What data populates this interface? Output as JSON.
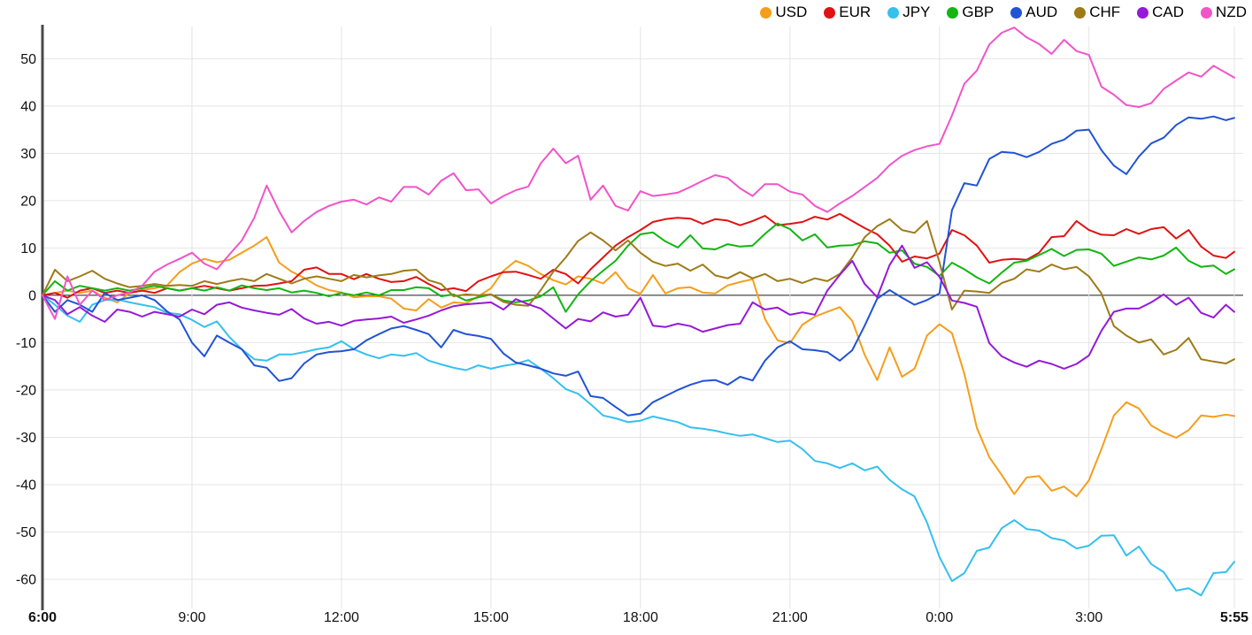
{
  "page": {
    "background": "#ffffff"
  },
  "legend": {
    "items": [
      {
        "label": "USD",
        "color": "#f59e1b"
      },
      {
        "label": "EUR",
        "color": "#e01212"
      },
      {
        "label": "JPY",
        "color": "#35c0ee"
      },
      {
        "label": "GBP",
        "color": "#12b512"
      },
      {
        "label": "AUD",
        "color": "#2153d4"
      },
      {
        "label": "CHF",
        "color": "#9e7b17"
      },
      {
        "label": "CAD",
        "color": "#9519d9"
      },
      {
        "label": "NZD",
        "color": "#f154c9"
      }
    ]
  },
  "chart_data": {
    "type": "line",
    "title": "",
    "xlabel": "",
    "ylabel": "",
    "x_unit": "minutes since 6:00",
    "x_range": [
      0,
      1435
    ],
    "ylim": [
      -65.8,
      56.8
    ],
    "grid": true,
    "zero_line_color": "#1a1a1a",
    "grid_color": "#e4e4e4",
    "axis_color": "#4a4a4a",
    "tick_label_color": "#111111",
    "legend_position": "top-right",
    "y_ticks": [
      50,
      40,
      30,
      20,
      10,
      0,
      -10,
      -20,
      -30,
      -40,
      -50,
      -60
    ],
    "x_ticks": [
      {
        "t": 0,
        "label": "6:00",
        "bold": true
      },
      {
        "t": 180,
        "label": "9:00",
        "bold": false
      },
      {
        "t": 360,
        "label": "12:00",
        "bold": false
      },
      {
        "t": 540,
        "label": "15:00",
        "bold": false
      },
      {
        "t": 720,
        "label": "18:00",
        "bold": false
      },
      {
        "t": 900,
        "label": "21:00",
        "bold": false
      },
      {
        "t": 1080,
        "label": "0:00",
        "bold": false
      },
      {
        "t": 1260,
        "label": "3:00",
        "bold": false
      },
      {
        "t": 1435,
        "label": "5:55",
        "bold": true
      }
    ],
    "x": [
      0,
      15,
      30,
      45,
      60,
      75,
      90,
      105,
      120,
      135,
      150,
      165,
      180,
      195,
      210,
      225,
      240,
      255,
      270,
      285,
      300,
      315,
      330,
      345,
      360,
      375,
      390,
      405,
      420,
      435,
      450,
      465,
      480,
      495,
      510,
      525,
      540,
      555,
      570,
      585,
      600,
      615,
      630,
      645,
      660,
      675,
      690,
      705,
      720,
      735,
      750,
      765,
      780,
      795,
      810,
      825,
      840,
      855,
      870,
      885,
      900,
      915,
      930,
      945,
      960,
      975,
      990,
      1005,
      1020,
      1035,
      1050,
      1065,
      1080,
      1095,
      1110,
      1125,
      1140,
      1155,
      1170,
      1185,
      1200,
      1215,
      1230,
      1245,
      1260,
      1275,
      1290,
      1305,
      1320,
      1335,
      1350,
      1365,
      1380,
      1395,
      1410,
      1425,
      1435
    ],
    "series": [
      {
        "name": "USD",
        "color": "#f59e1b",
        "values": [
          0,
          0.5,
          1,
          0.5,
          1,
          -0.5,
          -1.5,
          0.5,
          1.1,
          1.5,
          2.1,
          4.9,
          6.7,
          7.7,
          7,
          7.5,
          9,
          10.5,
          12.3,
          6.9,
          5,
          3.7,
          2.1,
          1.1,
          0.6,
          -0.4,
          -0.2,
          -0.2,
          -0.7,
          -2.8,
          -3.2,
          -0.8,
          -2.6,
          -1.5,
          -1.7,
          -0.2,
          1.5,
          5.2,
          7.3,
          6.2,
          4.5,
          3.2,
          2.3,
          4,
          3.5,
          2.5,
          4.9,
          1.5,
          0.3,
          4.3,
          0.4,
          1.5,
          1.7,
          0.6,
          0.4,
          2.1,
          2.8,
          3.4,
          -5,
          -9.5,
          -10.1,
          -6.2,
          -4.5,
          -3.5,
          -2.5,
          -5.4,
          -12.6,
          -17.9,
          -11,
          -17.2,
          -15.5,
          -8.5,
          -6.1,
          -8,
          -16.6,
          -28,
          -34.2,
          -38,
          -42,
          -38.5,
          -38.2,
          -41.3,
          -40.4,
          -42.5,
          -39.1,
          -32.5,
          -25.4,
          -22.6,
          -23.9,
          -27.5,
          -29,
          -30.1,
          -28.5,
          -25.4,
          -25.7,
          -25.2,
          -25.5
        ]
      },
      {
        "name": "EUR",
        "color": "#e01212",
        "values": [
          0,
          0.5,
          -0.5,
          1,
          1.5,
          0.5,
          1,
          0.5,
          1,
          0.5,
          1.5,
          1,
          1.5,
          2,
          1.5,
          1,
          1.5,
          2,
          2.1,
          2.5,
          3,
          5.4,
          5.9,
          4.5,
          4.5,
          3.4,
          4.5,
          3.5,
          2.8,
          3,
          3.9,
          2.4,
          1.1,
          1.5,
          0.9,
          3,
          4,
          4.9,
          5,
          4.3,
          3.5,
          5.4,
          4.5,
          2.5,
          5.5,
          8,
          10.5,
          12.3,
          13.8,
          15.5,
          16.1,
          16.4,
          16.2,
          15.1,
          16.1,
          15.8,
          14.8,
          15.7,
          16.8,
          14.8,
          15.1,
          15.5,
          16.6,
          16,
          17.2,
          15.7,
          14.2,
          12.9,
          10.5,
          7.1,
          8.2,
          7.8,
          8.8,
          13.8,
          12.7,
          10.5,
          6.9,
          7.5,
          7.7,
          7.5,
          9,
          12.3,
          12.5,
          15.7,
          13.8,
          12.8,
          12.7,
          14,
          13,
          14,
          14.4,
          12,
          13.8,
          10.3,
          8.4,
          7.9,
          9.2
        ]
      },
      {
        "name": "JPY",
        "color": "#35c0ee",
        "values": [
          0,
          -2,
          -4.3,
          -5.6,
          -2,
          -1,
          -0.9,
          -1.5,
          -2,
          -2.5,
          -3.7,
          -4,
          -5.2,
          -6.7,
          -5.5,
          -8.8,
          -11.4,
          -13.5,
          -13.8,
          -12.5,
          -12.5,
          -12,
          -11.4,
          -11,
          -9.7,
          -11.4,
          -12.5,
          -13.3,
          -12.5,
          -12.8,
          -12.2,
          -13.8,
          -14.6,
          -15.3,
          -15.8,
          -14.8,
          -15.5,
          -14.9,
          -14.5,
          -13.7,
          -15.5,
          -17.5,
          -19.8,
          -20.8,
          -23,
          -25.4,
          -26,
          -26.8,
          -26.5,
          -25.6,
          -26.2,
          -26.8,
          -27.9,
          -28.2,
          -28.6,
          -29.2,
          -29.7,
          -29.4,
          -30.2,
          -31,
          -30.7,
          -32.5,
          -35,
          -35.5,
          -36.5,
          -35.5,
          -37,
          -36.2,
          -39,
          -41,
          -42.5,
          -48,
          -55.3,
          -60.4,
          -58.7,
          -54,
          -53.3,
          -49.2,
          -47.5,
          -49.4,
          -49.7,
          -51.3,
          -51.8,
          -53.5,
          -52.9,
          -50.8,
          -50.7,
          -55,
          -53.1,
          -56.8,
          -58.5,
          -62.4,
          -61.9,
          -63.4,
          -58.7,
          -58.5,
          -56.3
        ]
      },
      {
        "name": "GBP",
        "color": "#12b512",
        "values": [
          0,
          3,
          1,
          2,
          1.5,
          1,
          1.5,
          1,
          1.5,
          2,
          1.5,
          1,
          1.5,
          1,
          1.7,
          1,
          2.1,
          1.5,
          1.1,
          1.5,
          0.6,
          1,
          0.5,
          -0.2,
          0.5,
          0,
          0.6,
          0,
          1.1,
          1.1,
          1.7,
          1.5,
          -0.2,
          0.2,
          -1.1,
          -0.4,
          0.2,
          -1.1,
          -1.5,
          -1.1,
          -0.2,
          1.7,
          -3.5,
          0.2,
          3,
          5.2,
          7.3,
          10.5,
          12.9,
          13.3,
          11.4,
          10.1,
          12.7,
          9.9,
          9.7,
          10.8,
          10.3,
          10.5,
          13,
          15.2,
          14,
          11.6,
          12.9,
          10.1,
          10.5,
          10.6,
          11.4,
          11,
          9,
          9.5,
          6.7,
          6,
          4.1,
          6.9,
          5.5,
          3.8,
          2.5,
          4.8,
          6.9,
          7.3,
          8.5,
          9.8,
          8.3,
          9.6,
          9.7,
          8.8,
          6.2,
          7.1,
          8,
          7.6,
          8.4,
          10.1,
          7.3,
          6,
          6.3,
          4.5,
          5.5
        ]
      },
      {
        "name": "AUD",
        "color": "#2153d4",
        "values": [
          0,
          -3.5,
          -1,
          -2,
          -3.5,
          0.5,
          -1,
          -0.5,
          0,
          -1,
          -3.4,
          -5.1,
          -10,
          -12.9,
          -8.5,
          -10,
          -11.4,
          -14.8,
          -15.3,
          -18.1,
          -17.5,
          -14.4,
          -12.5,
          -12,
          -11.8,
          -11.4,
          -9.5,
          -8.2,
          -7,
          -6.5,
          -7.3,
          -8.2,
          -11,
          -7.3,
          -8.2,
          -8.6,
          -9.2,
          -12.3,
          -14.2,
          -14.8,
          -15.5,
          -16.5,
          -17,
          -16.1,
          -21.3,
          -21.7,
          -23.6,
          -25.4,
          -25,
          -22.6,
          -21.3,
          -20,
          -18.9,
          -18.1,
          -17.9,
          -18.9,
          -17.2,
          -18,
          -13.8,
          -11,
          -9.7,
          -11.4,
          -11.6,
          -12,
          -13.8,
          -11.6,
          -6.4,
          -0.7,
          1.1,
          -0.5,
          -2,
          -1,
          0.4,
          18,
          23.7,
          23.2,
          28.8,
          30.3,
          30.1,
          29.2,
          30.3,
          32,
          32.9,
          34.8,
          35,
          30.7,
          27.4,
          25.6,
          29.3,
          32.1,
          33.3,
          36,
          37.6,
          37.3,
          37.8,
          37,
          37.5
        ]
      },
      {
        "name": "CHF",
        "color": "#9e7b17",
        "values": [
          0,
          5.4,
          3,
          4,
          5.2,
          3.5,
          2.5,
          1.7,
          2,
          2.4,
          2,
          2.2,
          2,
          3,
          2.4,
          3,
          3.5,
          3,
          4.5,
          3.5,
          2.5,
          3.5,
          4,
          3.5,
          3,
          4.3,
          3.8,
          4.2,
          4.5,
          5.2,
          5.4,
          3.2,
          2.4,
          -0.2,
          0.2,
          0,
          0.2,
          -1.4,
          -2,
          -2.2,
          1.1,
          5,
          8,
          11.5,
          13.3,
          11.6,
          9.5,
          11.6,
          9,
          7.1,
          6.2,
          6.7,
          5.2,
          6.5,
          4.2,
          3.6,
          4.9,
          3.6,
          4.5,
          3,
          3.5,
          2.6,
          3.6,
          3,
          4.5,
          8,
          12.3,
          14.6,
          16.1,
          13.8,
          13.2,
          15.7,
          7,
          -3,
          1,
          0.8,
          0.5,
          2.6,
          3.5,
          5.5,
          5,
          6.5,
          5.5,
          6,
          4,
          0.4,
          -6.5,
          -8.5,
          -10,
          -9.3,
          -12.5,
          -11.5,
          -9,
          -13.5,
          -14,
          -14.4,
          -13.5
        ]
      },
      {
        "name": "CAD",
        "color": "#9519d9",
        "values": [
          0,
          -1,
          -4,
          -2.5,
          -4.3,
          -5.6,
          -3,
          -3.5,
          -4.5,
          -3.5,
          -4,
          -4.5,
          -3,
          -4,
          -2,
          -1.5,
          -2.6,
          -3.2,
          -3.7,
          -4.1,
          -2.9,
          -4.9,
          -6,
          -5.6,
          -6.4,
          -5.4,
          -5.1,
          -4.9,
          -4.5,
          -5.8,
          -5.1,
          -4.3,
          -3.2,
          -2.3,
          -1.9,
          -1.7,
          -1.5,
          -3,
          -0.8,
          -1.9,
          -2.8,
          -4.9,
          -7,
          -5,
          -5.5,
          -3.6,
          -4.5,
          -4.1,
          -0.5,
          -6.4,
          -6.7,
          -6,
          -6.5,
          -7.7,
          -7,
          -6.3,
          -6,
          -1.5,
          -3,
          -2.6,
          -4.1,
          -3.6,
          -4.1,
          1,
          4.3,
          7.3,
          2.4,
          -0.4,
          6.4,
          10.5,
          5.8,
          7,
          3.9,
          -1.1,
          -1.6,
          -2.4,
          -10.1,
          -12.9,
          -14.2,
          -15.1,
          -13.8,
          -14.5,
          -15.5,
          -14.5,
          -12.7,
          -7.5,
          -3.5,
          -2.8,
          -2.8,
          -1.5,
          0.2,
          -2,
          -0.5,
          -3.7,
          -4.7,
          -2,
          -3.5
        ]
      },
      {
        "name": "NZD",
        "color": "#f154c9",
        "values": [
          0,
          -5,
          4,
          -2,
          1,
          -1,
          0,
          0.6,
          2,
          5,
          6.5,
          7.7,
          9,
          6.7,
          5.5,
          8.6,
          11.6,
          16.4,
          23.2,
          17.8,
          13.3,
          15.7,
          17.6,
          18.9,
          19.8,
          20.2,
          19.2,
          20.7,
          19.8,
          22.9,
          22.9,
          21.3,
          24.2,
          25.8,
          22.2,
          22.4,
          19.4,
          21,
          22.2,
          23,
          27.9,
          31,
          27.9,
          29.5,
          20.2,
          23.2,
          18.9,
          17.9,
          22,
          21,
          21.3,
          21.7,
          22.9,
          24.2,
          25.4,
          24.8,
          22.6,
          21,
          23.5,
          23.5,
          21.9,
          21.3,
          18.9,
          17.6,
          19.4,
          21,
          22.9,
          24.8,
          27.5,
          29.5,
          30.7,
          31.5,
          32,
          38,
          44.7,
          47.5,
          53,
          55.5,
          56.6,
          54.5,
          53.1,
          51,
          54,
          51.6,
          50.8,
          44.1,
          42.4,
          40.2,
          39.8,
          40.6,
          43.6,
          45.4,
          47.1,
          46.2,
          48.5,
          47,
          46
        ]
      }
    ]
  }
}
